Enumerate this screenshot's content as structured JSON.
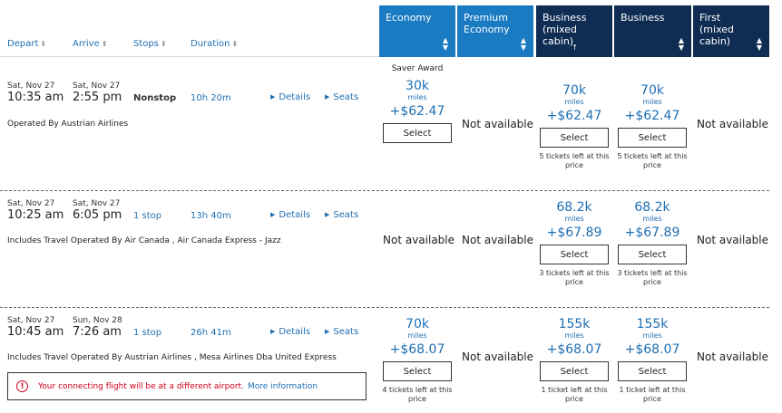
{
  "headers": {
    "depart": "Depart",
    "arrive": "Arrive",
    "stops": "Stops",
    "duration": "Duration",
    "sort_icon": "sort-updown-icon"
  },
  "cabins": {
    "economy": "Economy",
    "premium_line1": "Premium",
    "premium_line2": "Economy",
    "business_mixed_line1": "Business",
    "business_mixed_line2": "(mixed cabin)",
    "business": "Business",
    "first_line1": "First",
    "first_line2": "(mixed cabin)"
  },
  "links": {
    "details": "Details",
    "seats": "Seats"
  },
  "select_label": "Select",
  "not_available": "Not available",
  "miles_label": "miles",
  "flights": [
    {
      "depart_date": "Sat, Nov 27",
      "depart_time": "10:35 am",
      "arrive_date": "Sat, Nov 27",
      "arrive_time": "2:55 pm",
      "stops": "Nonstop",
      "duration": "10h 20m",
      "operated": "Operated By Austrian Airlines",
      "economy": {
        "award": "Saver Award",
        "miles": "30k",
        "tax": "+$62.47"
      },
      "business_mixed": {
        "miles": "70k",
        "tax": "+$62.47",
        "note_l1": "5 tickets left at this",
        "note_l2": "price"
      },
      "business": {
        "miles": "70k",
        "tax": "+$62.47",
        "note_l1": "5 tickets left at this",
        "note_l2": "price"
      }
    },
    {
      "depart_date": "Sat, Nov 27",
      "depart_time": "10:25 am",
      "arrive_date": "Sat, Nov 27",
      "arrive_time": "6:05 pm",
      "stops": "1 stop",
      "duration": "13h 40m",
      "operated": "Includes Travel Operated By Air Canada , Air Canada Express - Jazz",
      "business_mixed": {
        "miles": "68.2k",
        "tax": "+$67.89",
        "note_l1": "3 tickets left at this",
        "note_l2": "price"
      },
      "business": {
        "miles": "68.2k",
        "tax": "+$67.89",
        "note_l1": "3 tickets left at this",
        "note_l2": "price"
      }
    },
    {
      "depart_date": "Sat, Nov 27",
      "depart_time": "10:45 am",
      "arrive_date": "Sun, Nov 28",
      "arrive_time": "7:26 am",
      "stops": "1 stop",
      "duration": "26h 41m",
      "operated": "Includes Travel Operated By Austrian Airlines , Mesa Airlines Dba United Express",
      "economy": {
        "miles": "70k",
        "tax": "+$68.07",
        "note_l1": "4 tickets left at this",
        "note_l2": "price"
      },
      "business_mixed": {
        "miles": "155k",
        "tax": "+$68.07",
        "note_l1": "1 ticket left at this",
        "note_l2": "price"
      },
      "business": {
        "miles": "155k",
        "tax": "+$68.07",
        "note_l1": "1 ticket left at this",
        "note_l2": "price"
      },
      "warning": {
        "icon": "exclamation-circle-icon",
        "text": "Your connecting flight will be at a different airport.",
        "link": "More information"
      }
    }
  ],
  "colors": {
    "economy_header": "#1a7ac2",
    "business_header": "#0f2d53",
    "link": "#1f6fb3",
    "warning": "#d0021b"
  }
}
